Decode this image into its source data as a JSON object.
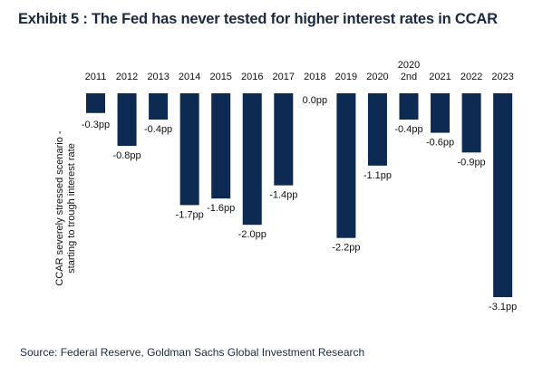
{
  "title": "Exhibit 5 : The Fed has never tested for higher interest rates in CCAR",
  "source": "Source: Federal Reserve, Goldman Sachs Global Investment Research",
  "colors": {
    "bar": "#0c2a52",
    "text": "#111111",
    "title": "#1b2a41"
  },
  "chart_data": {
    "type": "bar",
    "title": "Exhibit 5 : The Fed has never tested for higher interest rates in CCAR",
    "xlabel": "",
    "ylabel": "CCAR severely stressed scenario - starting to trough interest rate",
    "ylabel_lines": [
      "CCAR severely stressed scenario -",
      "starting to trough interest rate"
    ],
    "categories": [
      "2011",
      "2012",
      "2013",
      "2014",
      "2015",
      "2016",
      "2017",
      "2018",
      "2019",
      "2020",
      "2020 2nd",
      "2021",
      "2022",
      "2023"
    ],
    "category_lines": [
      [
        "2011"
      ],
      [
        "2012"
      ],
      [
        "2013"
      ],
      [
        "2014"
      ],
      [
        "2015"
      ],
      [
        "2016"
      ],
      [
        "2017"
      ],
      [
        "2018"
      ],
      [
        "2019"
      ],
      [
        "2020"
      ],
      [
        "2020",
        "2nd"
      ],
      [
        "2021"
      ],
      [
        "2022"
      ],
      [
        "2023"
      ]
    ],
    "values": [
      -0.3,
      -0.8,
      -0.4,
      -1.7,
      -1.6,
      -2.0,
      -1.4,
      0.0,
      -2.2,
      -1.1,
      -0.4,
      -0.6,
      -0.9,
      -3.1
    ],
    "data_labels": [
      "-0.3pp",
      "-0.8pp",
      "-0.4pp",
      "-1.7pp",
      "-1.6pp",
      "-2.0pp",
      "-1.4pp",
      "0.0pp",
      "-2.2pp",
      "-1.1pp",
      "-0.4pp",
      "-0.6pp",
      "-0.9pp",
      "-3.1pp"
    ],
    "ylim": [
      -3.1,
      0
    ],
    "grid": false,
    "legend": "none"
  }
}
